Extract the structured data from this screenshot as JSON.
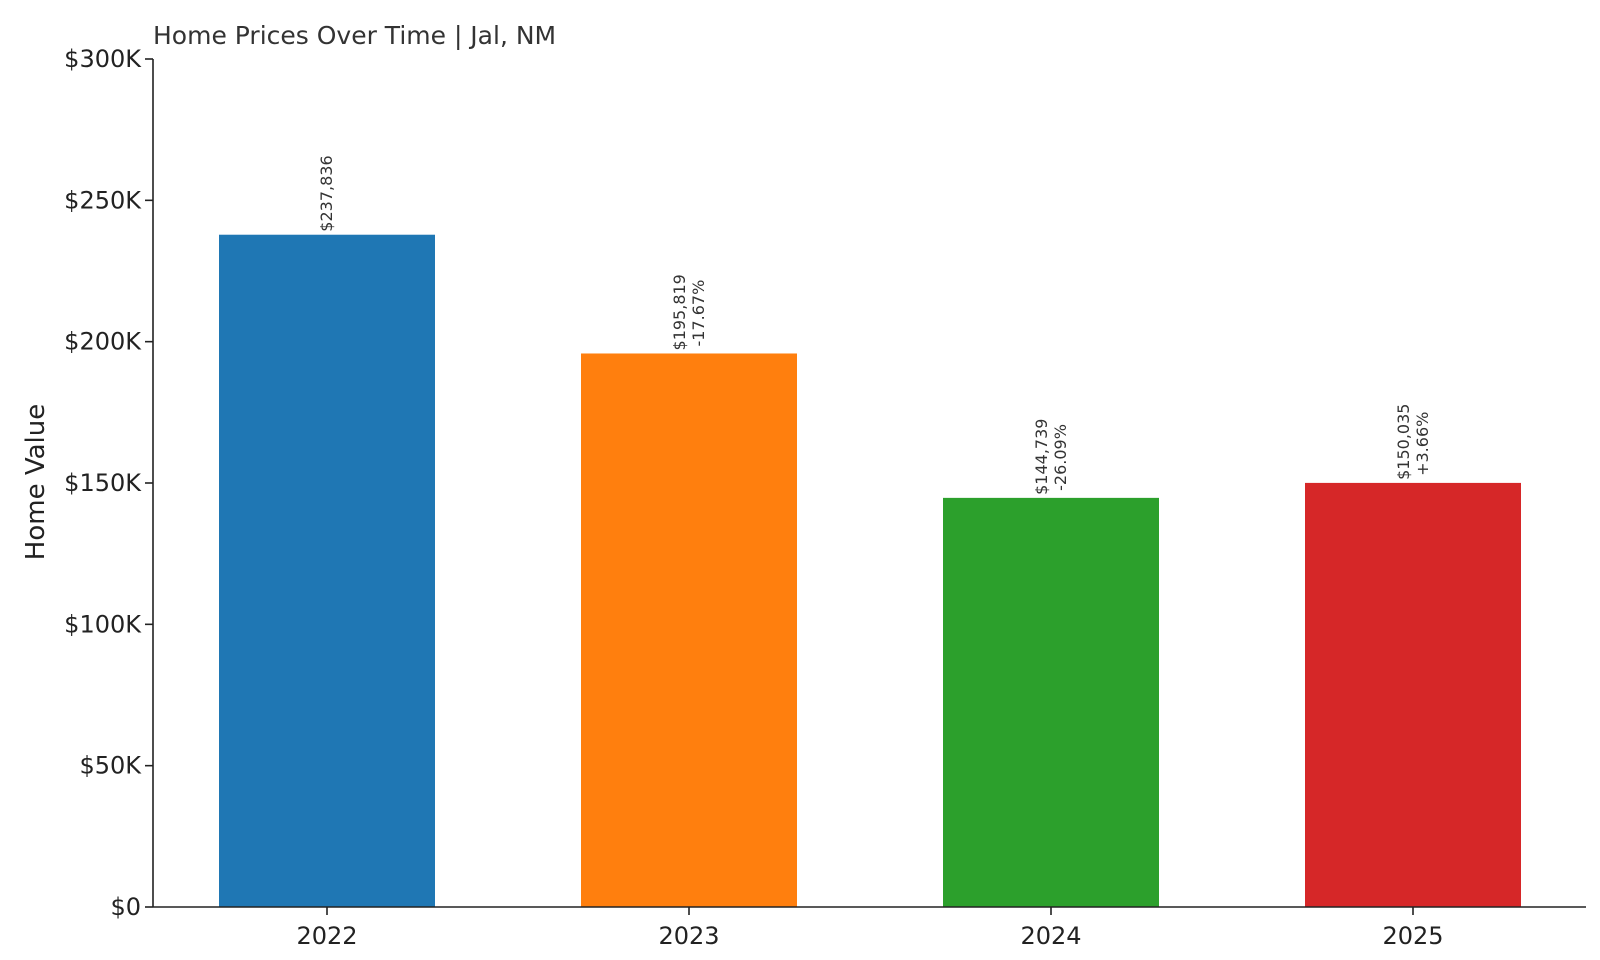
{
  "chart_data": {
    "type": "bar",
    "title": "Home Prices Over Time | Jal, NM",
    "xlabel": "",
    "ylabel": "Home Value",
    "categories": [
      "2022",
      "2023",
      "2024",
      "2025"
    ],
    "values": [
      237836,
      195819,
      144739,
      150035
    ],
    "value_labels": [
      "$237,836",
      "$195,819",
      "$144,739",
      "$150,035"
    ],
    "change_labels": [
      "",
      "-17.67%",
      "-26.09%",
      "+3.66%"
    ],
    "colors": [
      "#1f77b4",
      "#ff7f0e",
      "#2ca02c",
      "#d62728"
    ],
    "ylim": [
      0,
      300000
    ],
    "y_ticks": [
      0,
      50000,
      100000,
      150000,
      200000,
      250000,
      300000
    ],
    "y_tick_labels": [
      "$0",
      "$50K",
      "$100K",
      "$150K",
      "$200K",
      "$250K",
      "$300K"
    ],
    "grid": false,
    "legend": false
  }
}
